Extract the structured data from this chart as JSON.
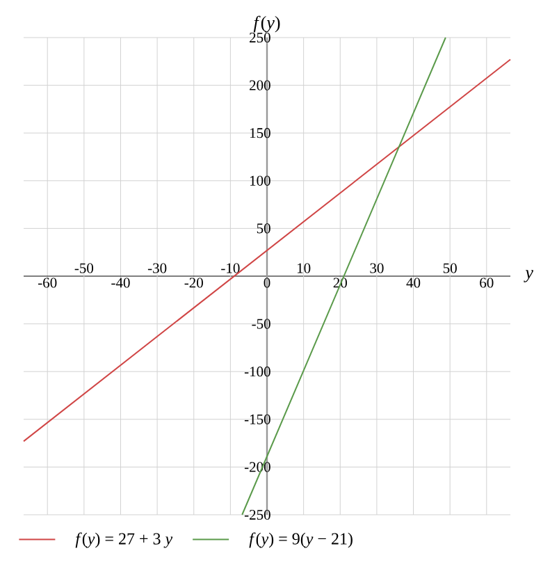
{
  "chart_data": {
    "type": "line",
    "xlabel": "*y*",
    "ylabel": "*f*(*y*)",
    "xlim": [
      -66.5,
      66.5
    ],
    "ylim": [
      -250,
      250
    ],
    "xticks": [
      -60,
      -40,
      -20,
      0,
      20,
      40,
      60
    ],
    "x2lim": [
      -66.5,
      66.5
    ],
    "x2ticks": [
      -50,
      -30,
      -10,
      10,
      30,
      50
    ],
    "yticks": [
      -250,
      -200,
      -150,
      -100,
      -50,
      50,
      100,
      150,
      200,
      250
    ],
    "grid": true,
    "legend": "bottom",
    "marker": "none",
    "line_style": "solid",
    "series": [
      {
        "name": "*f*(*y*) = 27 + 3 *y*",
        "color": "#d04545",
        "x": [
          -66.5,
          66.5
        ],
        "values": [
          -173,
          227
        ]
      },
      {
        "name": "*f*(*y*) = 9(*y* − 21)",
        "color": "#5a9a4a",
        "x": [
          -6.8,
          48.8
        ],
        "values": [
          -250,
          250
        ]
      }
    ]
  }
}
